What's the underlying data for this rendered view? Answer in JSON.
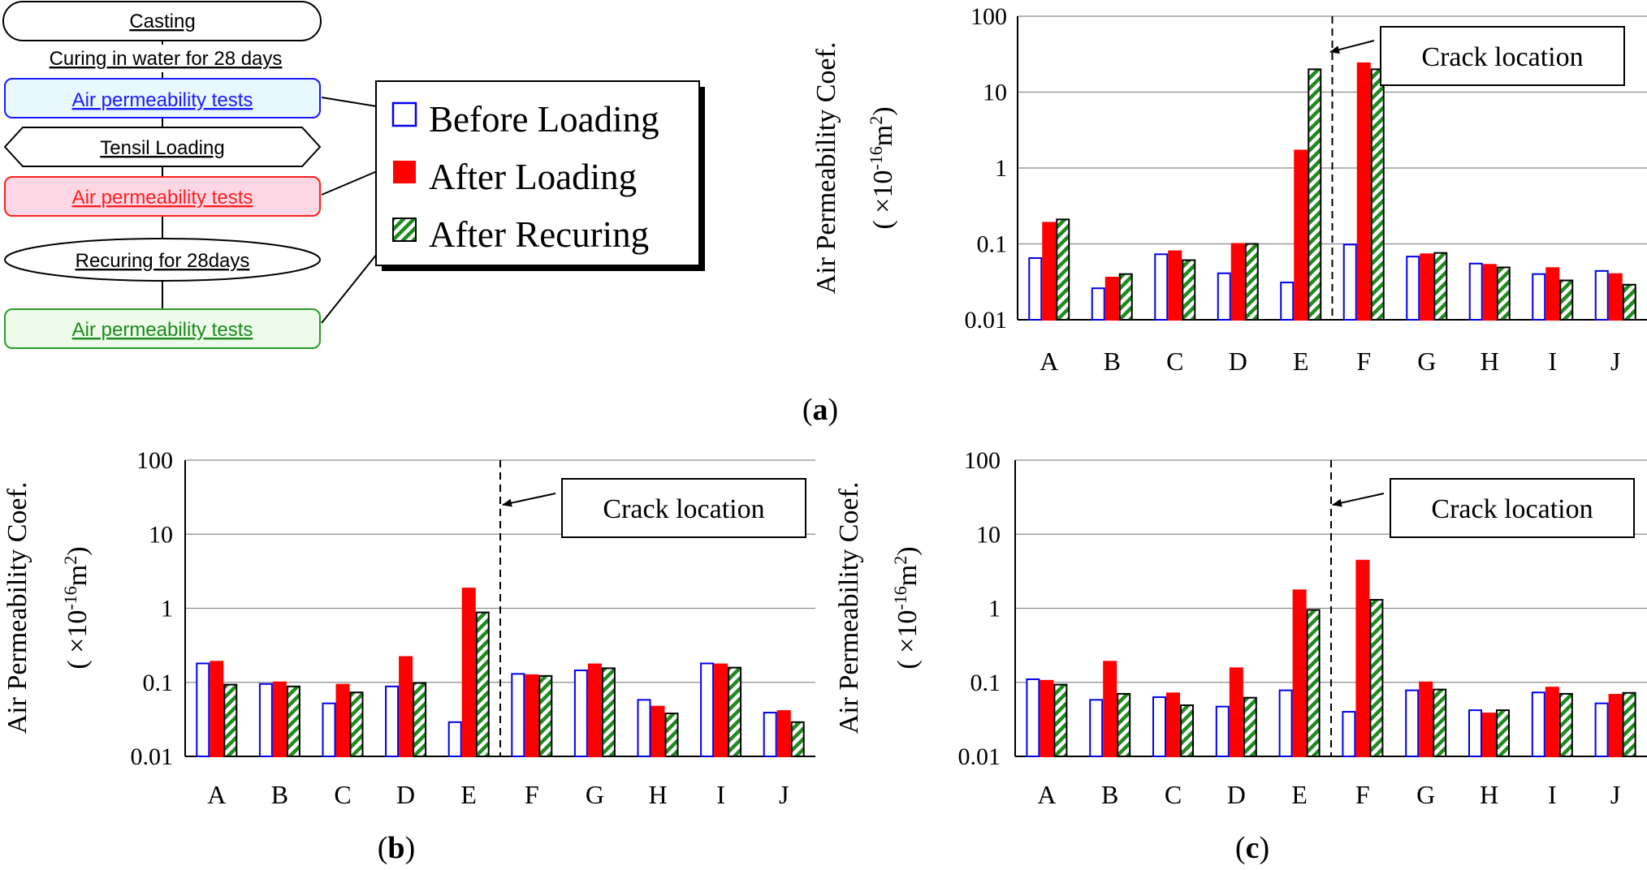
{
  "flowchart": {
    "steps": [
      {
        "label": "Casting",
        "color": "#000000",
        "shape": "rounded",
        "fill": "#ffffff"
      },
      {
        "label": "Curing in water for 28 days",
        "color": "#000000",
        "shape": "text",
        "fill": "#ffffff"
      },
      {
        "label": "Air permeability tests",
        "color": "#1a1aff",
        "shape": "rounded",
        "fill": "#e8f8fc",
        "border": "#1a1aff"
      },
      {
        "label": "Tensil Loading",
        "color": "#000000",
        "shape": "hexagon",
        "fill": "#ffffff"
      },
      {
        "label": "Air permeability tests",
        "color": "#ff2020",
        "shape": "rounded",
        "fill": "#fdd8e4",
        "border": "#ff2020"
      },
      {
        "label": "Recuring for 28days",
        "color": "#000000",
        "shape": "ellipse",
        "fill": "#ffffff"
      },
      {
        "label": "Air permeability tests",
        "color": "#1a8a1a",
        "shape": "rounded",
        "fill": "#eefbea",
        "border": "#2a9a2a"
      }
    ]
  },
  "legend": {
    "items": [
      "Before Loading",
      "After Loading",
      "After Recuring"
    ]
  },
  "colors": {
    "before": "#0000ee",
    "after": "#ff0000",
    "recure_fill": "#ffffff",
    "recure_stripe": "#1e8c1e"
  },
  "axis_label": {
    "line1": "Air Permeability Coef.",
    "line2_prefix": "( ×10",
    "line2_exp": "-16",
    "line2_unit": "m",
    "line2_unit_exp": "2",
    "line2_suffix": ")"
  },
  "chart_data": [
    {
      "type": "bar",
      "scale": "log",
      "panel": "(a)",
      "panel_letter": "a",
      "categories": [
        "A",
        "B",
        "C",
        "D",
        "E",
        "F",
        "G",
        "H",
        "I",
        "J"
      ],
      "ylim": [
        0.01,
        100
      ],
      "yticks": [
        "100",
        "10",
        "1",
        "0.1",
        "0.01"
      ],
      "series": [
        {
          "name": "Before Loading",
          "values": [
            0.065,
            0.026,
            0.073,
            0.041,
            0.031,
            0.098,
            0.068,
            0.055,
            0.04,
            0.044
          ]
        },
        {
          "name": "After Loading",
          "values": [
            0.19,
            0.036,
            0.08,
            0.1,
            1.7,
            24.0,
            0.073,
            0.053,
            0.048,
            0.04
          ]
        },
        {
          "name": "After Recuring",
          "values": [
            0.21,
            0.04,
            0.061,
            0.1,
            20.0,
            20.0,
            0.076,
            0.049,
            0.033,
            0.029
          ]
        }
      ],
      "crack_between": [
        "E",
        "F"
      ],
      "annotation": "Crack location"
    },
    {
      "type": "bar",
      "scale": "log",
      "panel": "(b)",
      "panel_letter": "b",
      "categories": [
        "A",
        "B",
        "C",
        "D",
        "E",
        "F",
        "G",
        "H",
        "I",
        "J"
      ],
      "ylim": [
        0.01,
        100
      ],
      "yticks": [
        "100",
        "10",
        "1",
        "0.1",
        "0.01"
      ],
      "series": [
        {
          "name": "Before Loading",
          "values": [
            0.18,
            0.095,
            0.052,
            0.088,
            0.029,
            0.13,
            0.145,
            0.058,
            0.18,
            0.039
          ]
        },
        {
          "name": "After Loading",
          "values": [
            0.19,
            0.1,
            0.093,
            0.22,
            1.85,
            0.125,
            0.175,
            0.047,
            0.175,
            0.041
          ]
        },
        {
          "name": "After Recuring",
          "values": [
            0.093,
            0.088,
            0.073,
            0.098,
            0.88,
            0.122,
            0.155,
            0.038,
            0.158,
            0.029
          ]
        }
      ],
      "crack_between": [
        "E",
        "F"
      ],
      "annotation": "Crack location"
    },
    {
      "type": "bar",
      "scale": "log",
      "panel": "(c)",
      "panel_letter": "c",
      "categories": [
        "A",
        "B",
        "C",
        "D",
        "E",
        "F",
        "G",
        "H",
        "I",
        "J"
      ],
      "ylim": [
        0.01,
        100
      ],
      "yticks": [
        "100",
        "10",
        "1",
        "0.1",
        "0.01"
      ],
      "series": [
        {
          "name": "Before Loading",
          "values": [
            0.11,
            0.058,
            0.063,
            0.047,
            0.078,
            0.04,
            0.078,
            0.042,
            0.073,
            0.052
          ]
        },
        {
          "name": "After Loading",
          "values": [
            0.105,
            0.19,
            0.071,
            0.155,
            1.75,
            4.4,
            0.1,
            0.038,
            0.085,
            0.068
          ]
        },
        {
          "name": "After Recuring",
          "values": [
            0.093,
            0.07,
            0.049,
            0.062,
            0.95,
            1.3,
            0.08,
            0.042,
            0.07,
            0.072
          ]
        }
      ],
      "crack_between": [
        "E",
        "F"
      ],
      "annotation": "Crack location"
    }
  ]
}
